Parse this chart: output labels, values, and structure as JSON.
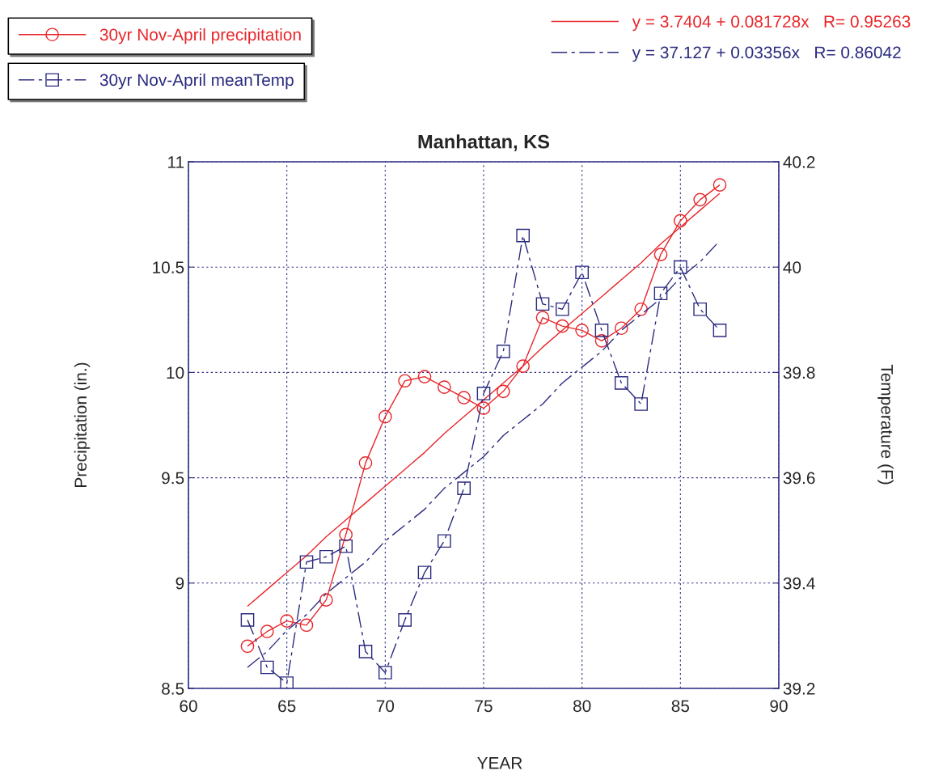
{
  "chart_data": {
    "type": "line",
    "title": "Manhattan, KS",
    "xlabel": "YEAR",
    "ylabel": "Precipitation (in.)",
    "y2label": "Temperature (F)",
    "x": [
      63,
      64,
      65,
      66,
      67,
      68,
      69,
      70,
      71,
      72,
      73,
      74,
      75,
      76,
      77,
      78,
      79,
      80,
      81,
      82,
      83,
      84,
      85,
      86,
      87
    ],
    "series": [
      {
        "name": "30yr Nov-April precipitation",
        "color": "#e8262a",
        "marker": "circle",
        "line_style": "solid",
        "values": [
          8.7,
          8.77,
          8.82,
          8.8,
          8.92,
          9.23,
          9.57,
          9.79,
          9.96,
          9.98,
          9.93,
          9.88,
          9.83,
          9.91,
          10.03,
          10.26,
          10.22,
          10.2,
          10.15,
          10.21,
          10.3,
          10.56,
          10.72,
          10.82,
          10.89
        ]
      },
      {
        "name": "30yr Nov-April meanTemp",
        "color": "#2b2b80",
        "marker": "square",
        "line_style": "dashed",
        "axis": "y2",
        "values": [
          39.33,
          39.24,
          39.21,
          39.44,
          39.45,
          39.47,
          39.27,
          39.23,
          39.33,
          39.42,
          39.48,
          39.58,
          39.76,
          39.84,
          40.06,
          39.93,
          39.92,
          39.99,
          39.88,
          39.78,
          39.74,
          39.95,
          40.0,
          39.92,
          39.88
        ]
      },
      {
        "name": "y = 3.7404 + 0.081728x   R= 0.95263",
        "color": "#e8262a",
        "marker": "none",
        "line_style": "solid",
        "type": "line",
        "values": [
          8.89,
          8.97,
          9.05,
          9.13,
          9.22,
          9.3,
          9.38,
          9.46,
          9.54,
          9.62,
          9.71,
          9.79,
          9.87,
          9.95,
          10.03,
          10.12,
          10.2,
          10.28,
          10.36,
          10.44,
          10.52,
          10.61,
          10.69,
          10.77,
          10.85
        ]
      },
      {
        "name": "y = 37.127 + 0.03356x   R= 0.86042",
        "color": "#2b2b80",
        "marker": "none",
        "line_style": "dashed",
        "axis": "y2",
        "type": "line",
        "values": [
          39.24,
          39.27,
          39.31,
          39.34,
          39.38,
          39.41,
          39.44,
          39.48,
          39.51,
          39.54,
          39.58,
          39.61,
          39.64,
          39.68,
          39.71,
          39.74,
          39.78,
          39.81,
          39.84,
          39.88,
          39.91,
          39.94,
          39.98,
          40.01,
          40.05
        ]
      }
    ],
    "xlim": [
      60,
      90
    ],
    "xticks": [
      60,
      65,
      70,
      75,
      80,
      85,
      90
    ],
    "ylim": [
      8.5,
      11
    ],
    "yticks": [
      8.5,
      9,
      9.5,
      10,
      10.5,
      11
    ],
    "y2lim": [
      39.2,
      40.2
    ],
    "y2ticks": [
      39.2,
      39.4,
      39.6,
      39.8,
      40,
      40.2
    ],
    "grid": true,
    "legend": "top"
  }
}
